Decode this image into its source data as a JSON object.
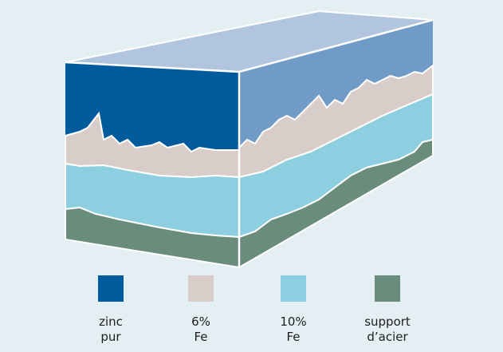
{
  "colors": {
    "background": "#e4eff3",
    "top_face": "#b1c6de",
    "zinc_side": "#6f9bc6",
    "edge": "#ffffff"
  },
  "legend": [
    {
      "line1": "zinc",
      "line2": "pur",
      "color": "#005b9c"
    },
    {
      "line1": "6%",
      "line2": "Fe",
      "color": "#d9cdca"
    },
    {
      "line1": "10%",
      "line2": "Fe",
      "color": "#8ecee1"
    },
    {
      "line1": "support",
      "line2": "d’acier",
      "color": "#6a8c7d"
    }
  ]
}
